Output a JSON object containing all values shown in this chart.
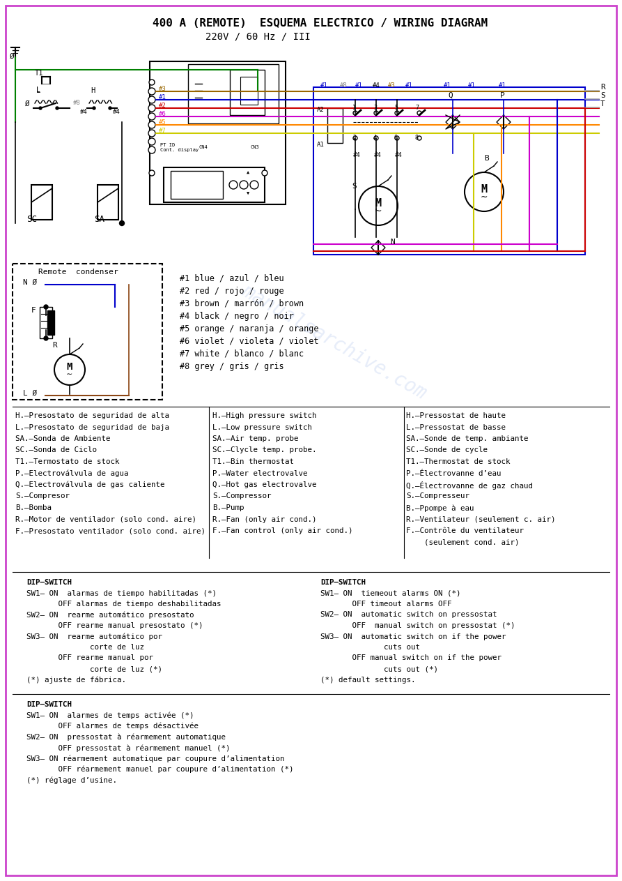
{
  "title_line1": "400 A (REMOTE)  ESQUEMA ELECTRICO / WIRING DIAGRAM",
  "title_line2": "220V / 60 Hz / III",
  "bg_color": "#ffffff",
  "border_color": "#cc44cc",
  "legend_items": [
    "#1 blue / azul / bleu",
    "#2 red / rojo / rouge",
    "#3 brown / marrón / brown",
    "#4 black / negro / noir",
    "#5 orange / naranja / orange",
    "#6 violet / violeta / violet",
    "#7 white / blanco / blanc",
    "#8 grey / gris / gris"
  ],
  "spanish_labels": [
    "H.–Presostato de seguridad de alta",
    "L.–Presostato de seguridad de baja",
    "SA.–Sonda de Ambiente",
    "SC.–Sonda de Ciclo",
    "T1.–Termostato de stock",
    "P.–Electroválvula de agua",
    "Q.–Electroválvula de gas caliente",
    "S.–Compresor",
    "B.–Bomba",
    "R.–Motor de ventilador (solo cond. aire)",
    "F.–Presostato ventilador (solo cond. aire)"
  ],
  "english_labels": [
    "H.–High pressure switch",
    "L.–Low pressure switch",
    "SA.–Air temp. probe",
    "SC.–Clycle temp. probe.",
    "T1.–Bin thermostat",
    "P.–Water electrovalve",
    "Q.–Hot gas electrovalve",
    "S.–Compressor",
    "B.–Pump",
    "R.–Fan (only air cond.)",
    "F.–Fan control (only air cond.)"
  ],
  "french_labels": [
    "H.–Pressostat de haute",
    "L.–Pressostat de basse",
    "SA.–Sonde de temp. ambiante",
    "SC.–Sonde de cycle",
    "T1.–Thermostat de stock",
    "P.–Électrovanne d’eau",
    "Q.–Électrovanne de gaz chaud",
    "S.–Compresseur",
    "B.–Ppompe à eau",
    "R.–Ventilateur (seulement c. air)",
    "F.–Contrôle du ventilateur",
    "    (seulement cond. air)"
  ],
  "dip_spanish": [
    "DIP–SWITCH",
    "SW1– ON  alarmas de tiempo habilitadas (*)",
    "       OFF alarmas de tiempo deshabilitadas",
    "SW2– ON  rearme automático presostato",
    "       OFF rearme manual presostato (*)",
    "SW3– ON  rearme automático por",
    "              corte de luz",
    "       OFF rearme manual por",
    "              corte de luz (*)",
    "(*) ajuste de fábrica."
  ],
  "dip_english": [
    "DIP–SWITCH",
    "SW1– ON  tiemeout alarms ON (*)",
    "       OFF timeout alarms OFF",
    "SW2– ON  automatic switch on pressostat",
    "       OFF  manual switch on pressostat (*)",
    "SW3– ON  automatic switch on if the power",
    "              cuts out",
    "       OFF manual switch on if the power",
    "              cuts out (*)",
    "(*) default settings."
  ],
  "dip_french": [
    "DIP–SWITCH",
    "SW1– ON  alarmes de temps activée (*)",
    "       OFF alarmes de temps désactivée",
    "SW2– ON  pressostat à réarmement automatique",
    "       OFF pressostat à réarmement manuel (*)",
    "SW3– ON réarmement automatique par coupure d’alimentation",
    "       OFF réarmement manuel par coupure d’alimentation (*)",
    "(*) réglage d’usine."
  ],
  "wire_colors": {
    "#1": "#0000cc",
    "#2": "#cc0000",
    "#3": "#996600",
    "#4": "#000000",
    "#5": "#ff8800",
    "#6": "#cc00cc",
    "#7": "#cccc00",
    "#8": "#888888"
  }
}
